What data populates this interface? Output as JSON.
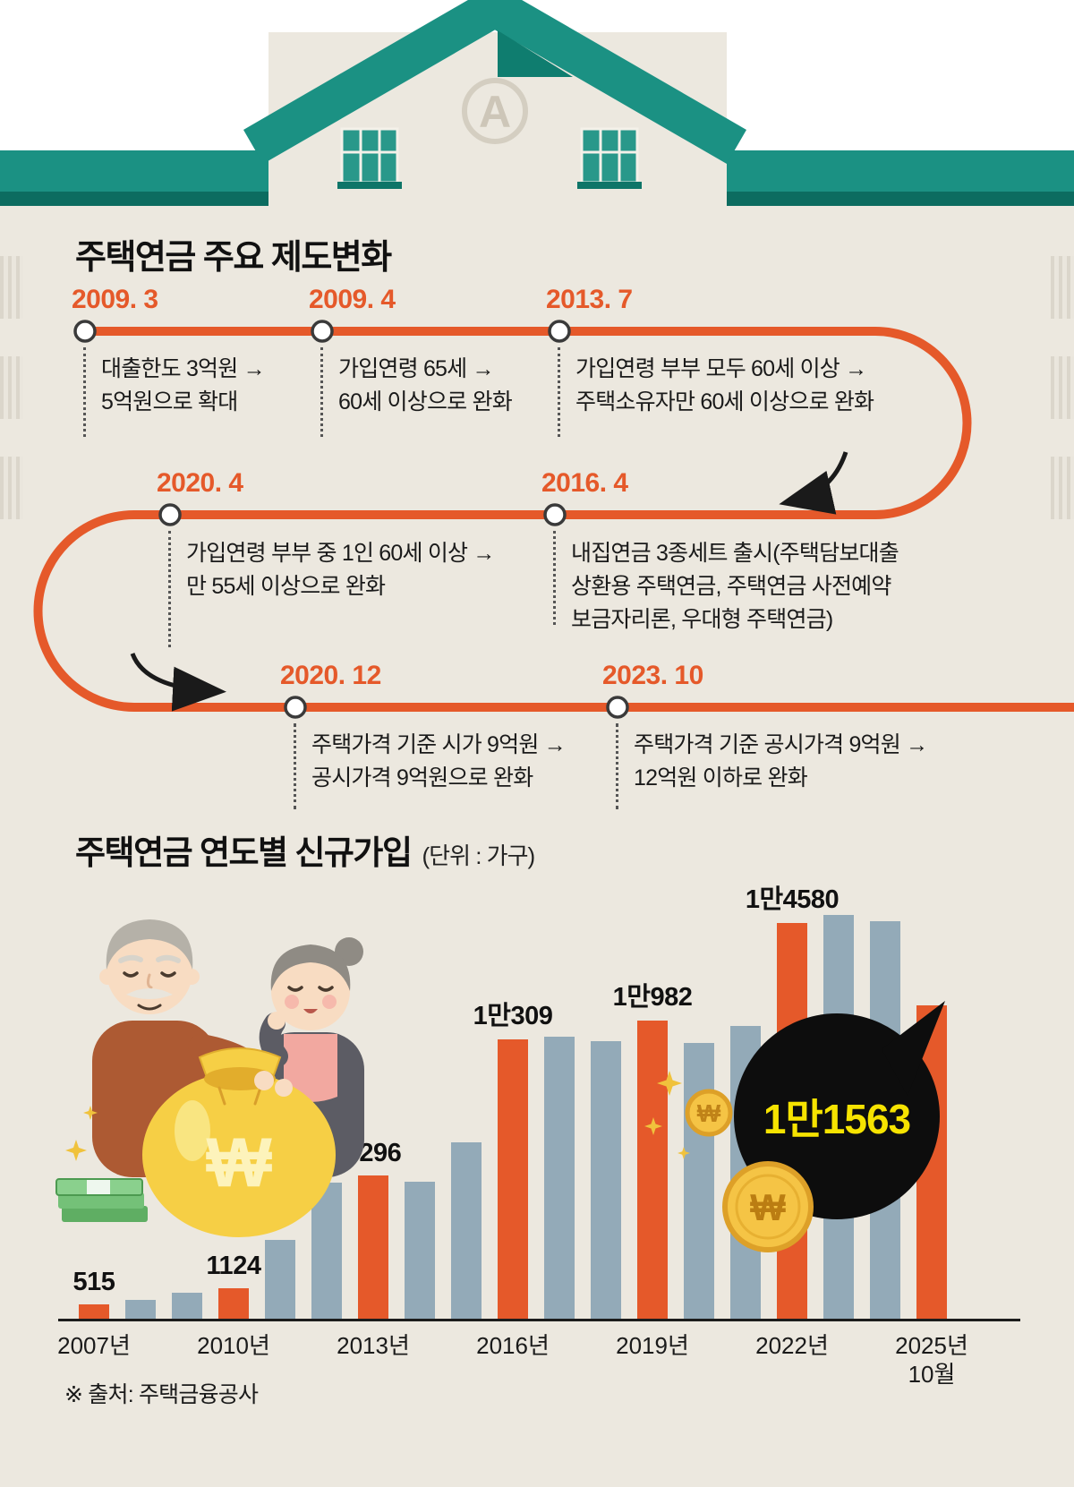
{
  "header": {
    "emblem_letter": "A"
  },
  "timeline": {
    "title": "주택연금 주요 제도변화",
    "events": [
      {
        "date": "2009. 3",
        "lines": [
          "대출한도 3억원 →",
          "5억원으로 확대"
        ]
      },
      {
        "date": "2009. 4",
        "lines": [
          "가입연령 65세 →",
          "60세 이상으로 완화"
        ]
      },
      {
        "date": "2013. 7",
        "lines": [
          "가입연령 부부 모두 60세 이상 →",
          "주택소유자만 60세 이상으로 완화"
        ]
      },
      {
        "date": "2020. 4",
        "lines": [
          "가입연령 부부 중 1인 60세 이상 →",
          "만 55세 이상으로 완화"
        ]
      },
      {
        "date": "2016. 4",
        "lines": [
          "내집연금 3종세트 출시(주택담보대출",
          "상환용 주택연금, 주택연금 사전예약",
          "보금자리론, 우대형 주택연금)"
        ]
      },
      {
        "date": "2020. 12",
        "lines": [
          "주택가격 기준 시가 9억원 →",
          "공시가격 9억원으로 완화"
        ]
      },
      {
        "date": "2023. 10",
        "lines": [
          "주택가격 기준 공시가격 9억원 →",
          "12억원 이하로 완화"
        ]
      }
    ]
  },
  "chart": {
    "title": "주택연금 연도별 신규가입",
    "unit": "(단위 : 가구)",
    "callout_value": "1만1563",
    "source": "※ 출처: 주택금융공사"
  },
  "chart_data": {
    "type": "bar",
    "title": "주택연금 연도별 신규가입 (단위 : 가구)",
    "years": [
      2007,
      2008,
      2009,
      2010,
      2011,
      2012,
      2013,
      2014,
      2015,
      2016,
      2017,
      2018,
      2019,
      2020,
      2021,
      2022,
      2023,
      2024,
      2025
    ],
    "values": [
      515,
      700,
      950,
      1124,
      2900,
      5000,
      5296,
      5050,
      6500,
      10309,
      10400,
      10240,
      10982,
      10170,
      10800,
      14580,
      14890,
      14650,
      11563
    ],
    "bar_labels": [
      "515",
      "",
      "",
      "1124",
      "",
      "",
      "5296",
      "",
      "",
      "1만309",
      "",
      "",
      "1만982",
      "",
      "",
      "1만4580",
      "",
      "",
      ""
    ],
    "highlight_indices": [
      0,
      3,
      6,
      9,
      12,
      15,
      18
    ],
    "highlight_color": "#e5592a",
    "default_color": "#93aab8",
    "ylim": [
      0,
      16500
    ],
    "x_ticks": [
      {
        "index": 0,
        "text": "2007년"
      },
      {
        "index": 3,
        "text": "2010년"
      },
      {
        "index": 6,
        "text": "2013년"
      },
      {
        "index": 9,
        "text": "2016년"
      },
      {
        "index": 12,
        "text": "2019년"
      },
      {
        "index": 15,
        "text": "2022년"
      },
      {
        "index": 18,
        "text": "2025년",
        "text2": "10월"
      }
    ]
  },
  "colors": {
    "orange": "#e5592a",
    "teal": "#1b9183",
    "teal_dark": "#0c6c60",
    "bar_blue": "#93aab8",
    "background": "#ece8df",
    "callout_bg": "#0d0d0d",
    "callout_text": "#f6e300"
  }
}
